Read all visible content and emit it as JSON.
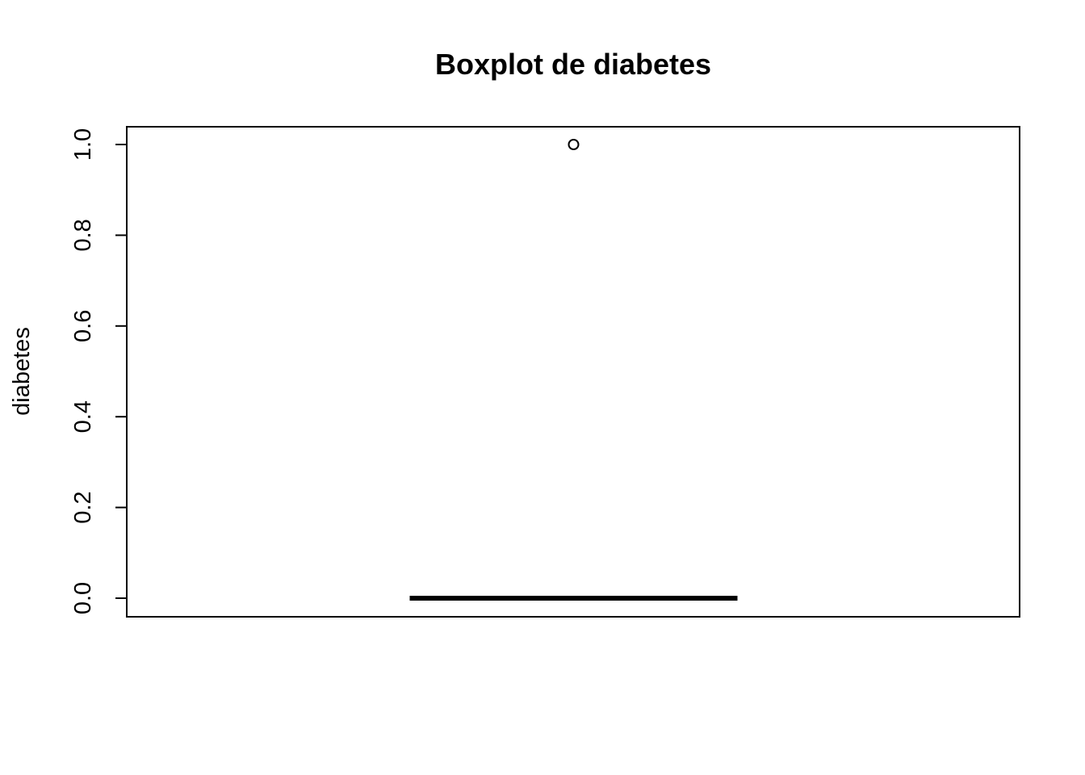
{
  "chart_data": {
    "type": "boxplot",
    "title": "Boxplot de diabetes",
    "ylabel": "diabetes",
    "xlabel": "",
    "ylim": [
      0.0,
      1.0
    ],
    "yticks": [
      "0.0",
      "0.2",
      "0.4",
      "0.6",
      "0.8",
      "1.0"
    ],
    "ytick_values": [
      0.0,
      0.2,
      0.4,
      0.6,
      0.8,
      1.0
    ],
    "box": {
      "min": 0.0,
      "q1": 0.0,
      "median": 0.0,
      "q3": 0.0,
      "max": 0.0,
      "outliers": [
        1.0
      ]
    },
    "grid": false,
    "color": "#000000"
  }
}
